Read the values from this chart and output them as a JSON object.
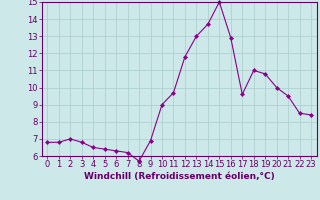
{
  "x": [
    0,
    1,
    2,
    3,
    4,
    5,
    6,
    7,
    8,
    9,
    10,
    11,
    12,
    13,
    14,
    15,
    16,
    17,
    18,
    19,
    20,
    21,
    22,
    23
  ],
  "y": [
    6.8,
    6.8,
    7.0,
    6.8,
    6.5,
    6.4,
    6.3,
    6.2,
    5.7,
    6.9,
    9.0,
    9.7,
    11.8,
    13.0,
    13.7,
    15.0,
    12.9,
    9.6,
    11.0,
    10.8,
    10.0,
    9.5,
    8.5,
    8.4
  ],
  "line_color": "#880088",
  "marker": "D",
  "marker_size": 2.2,
  "background_color": "#cce8e8",
  "grid_color": "#aacccc",
  "xlabel": "Windchill (Refroidissement éolien,°C)",
  "xlabel_fontsize": 6.5,
  "tick_fontsize": 6.0,
  "ylim": [
    6,
    15
  ],
  "yticks": [
    6,
    7,
    8,
    9,
    10,
    11,
    12,
    13,
    14,
    15
  ],
  "xticks": [
    0,
    1,
    2,
    3,
    4,
    5,
    6,
    7,
    8,
    9,
    10,
    11,
    12,
    13,
    14,
    15,
    16,
    17,
    18,
    19,
    20,
    21,
    22,
    23
  ],
  "spine_color": "#660066",
  "xlim": [
    -0.5,
    23.5
  ]
}
